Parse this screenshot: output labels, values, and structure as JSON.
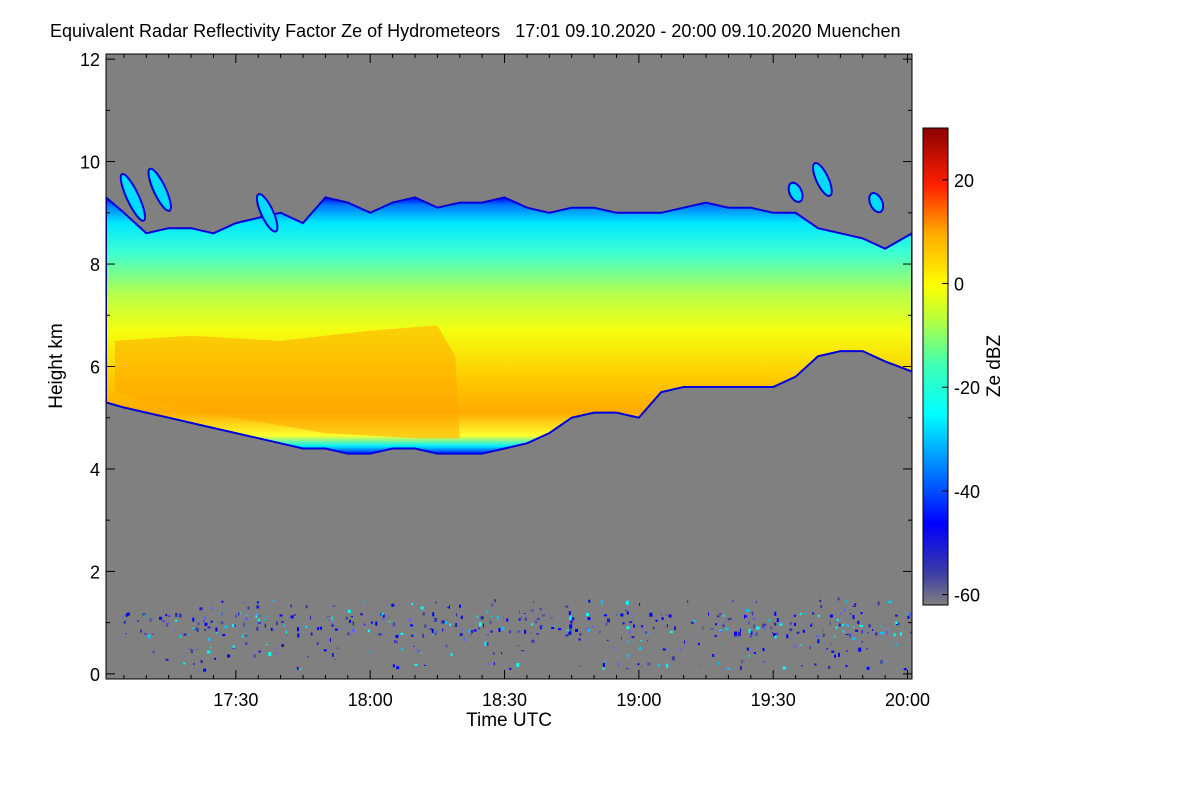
{
  "chart_data": {
    "type": "heatmap",
    "title": "Equivalent Radar Reflectivity Factor Ze of Hydrometeors",
    "period": "17:01 09.10.2020 - 20:00 09.10.2020",
    "location": "Muenchen",
    "xlabel": "Time UTC",
    "ylabel": "Height km",
    "colorbar_label": "Ze dBZ",
    "xlim_minutes_utc": [
      1021,
      1201
    ],
    "ylim_km": [
      -0.1,
      12.1
    ],
    "x_ticks": [
      {
        "minutes": 1050,
        "label": "17:30"
      },
      {
        "minutes": 1080,
        "label": "18:00"
      },
      {
        "minutes": 1110,
        "label": "18:30"
      },
      {
        "minutes": 1140,
        "label": "19:00"
      },
      {
        "minutes": 1170,
        "label": "19:30"
      },
      {
        "minutes": 1200,
        "label": "20:00"
      }
    ],
    "y_ticks": [
      0,
      2,
      4,
      6,
      8,
      10,
      12
    ],
    "colorbar_range_dbz": [
      -62,
      30
    ],
    "colorbar_ticks": [
      20,
      0,
      -20,
      -40,
      -60
    ],
    "background_color": "#808080",
    "cloud_layer": {
      "approx_top_km": [
        [
          1021,
          9.3
        ],
        [
          1025,
          9.0
        ],
        [
          1030,
          8.6
        ],
        [
          1035,
          8.7
        ],
        [
          1040,
          8.7
        ],
        [
          1045,
          8.6
        ],
        [
          1050,
          8.8
        ],
        [
          1055,
          8.9
        ],
        [
          1060,
          9.0
        ],
        [
          1065,
          8.8
        ],
        [
          1070,
          9.3
        ],
        [
          1075,
          9.2
        ],
        [
          1080,
          9.0
        ],
        [
          1085,
          9.2
        ],
        [
          1090,
          9.3
        ],
        [
          1095,
          9.1
        ],
        [
          1100,
          9.2
        ],
        [
          1105,
          9.2
        ],
        [
          1110,
          9.3
        ],
        [
          1115,
          9.1
        ],
        [
          1120,
          9.0
        ],
        [
          1125,
          9.1
        ],
        [
          1130,
          9.1
        ],
        [
          1135,
          9.0
        ],
        [
          1140,
          9.0
        ],
        [
          1145,
          9.0
        ],
        [
          1150,
          9.1
        ],
        [
          1155,
          9.2
        ],
        [
          1160,
          9.1
        ],
        [
          1165,
          9.1
        ],
        [
          1170,
          9.0
        ],
        [
          1175,
          9.0
        ],
        [
          1180,
          8.7
        ],
        [
          1185,
          8.6
        ],
        [
          1190,
          8.5
        ],
        [
          1195,
          8.3
        ],
        [
          1201,
          8.6
        ]
      ],
      "approx_base_km": [
        [
          1021,
          5.3
        ],
        [
          1025,
          5.2
        ],
        [
          1030,
          5.1
        ],
        [
          1035,
          5.0
        ],
        [
          1040,
          4.9
        ],
        [
          1045,
          4.8
        ],
        [
          1050,
          4.7
        ],
        [
          1055,
          4.6
        ],
        [
          1060,
          4.5
        ],
        [
          1065,
          4.4
        ],
        [
          1070,
          4.4
        ],
        [
          1075,
          4.3
        ],
        [
          1080,
          4.3
        ],
        [
          1085,
          4.4
        ],
        [
          1090,
          4.4
        ],
        [
          1095,
          4.3
        ],
        [
          1100,
          4.3
        ],
        [
          1105,
          4.3
        ],
        [
          1110,
          4.4
        ],
        [
          1115,
          4.5
        ],
        [
          1120,
          4.7
        ],
        [
          1125,
          5.0
        ],
        [
          1130,
          5.1
        ],
        [
          1135,
          5.1
        ],
        [
          1140,
          5.0
        ],
        [
          1145,
          5.5
        ],
        [
          1150,
          5.6
        ],
        [
          1155,
          5.6
        ],
        [
          1160,
          5.6
        ],
        [
          1165,
          5.6
        ],
        [
          1170,
          5.6
        ],
        [
          1175,
          5.8
        ],
        [
          1180,
          6.2
        ],
        [
          1185,
          6.3
        ],
        [
          1190,
          6.3
        ],
        [
          1195,
          6.1
        ],
        [
          1201,
          5.9
        ]
      ],
      "approx_max_dbz_core": [
        [
          1021,
          -5
        ],
        [
          1040,
          3
        ],
        [
          1060,
          5
        ],
        [
          1080,
          8
        ],
        [
          1095,
          8
        ],
        [
          1110,
          -5
        ],
        [
          1140,
          -3
        ],
        [
          1170,
          -6
        ],
        [
          1201,
          -8
        ]
      ],
      "detached_cells_km": [
        {
          "time": 1027,
          "bottom": 8.8,
          "top": 9.8
        },
        {
          "time": 1033,
          "bottom": 9.0,
          "top": 9.9
        },
        {
          "time": 1057,
          "bottom": 8.6,
          "top": 9.4
        },
        {
          "time": 1175,
          "bottom": 9.2,
          "top": 9.6
        },
        {
          "time": 1181,
          "bottom": 9.3,
          "top": 10.0
        },
        {
          "time": 1193,
          "bottom": 9.0,
          "top": 9.4
        }
      ]
    },
    "boundary_layer_clutter": {
      "height_range_km": [
        0.1,
        1.5
      ],
      "time_range_minutes": [
        1024,
        1201
      ],
      "typical_dbz": -45
    }
  }
}
